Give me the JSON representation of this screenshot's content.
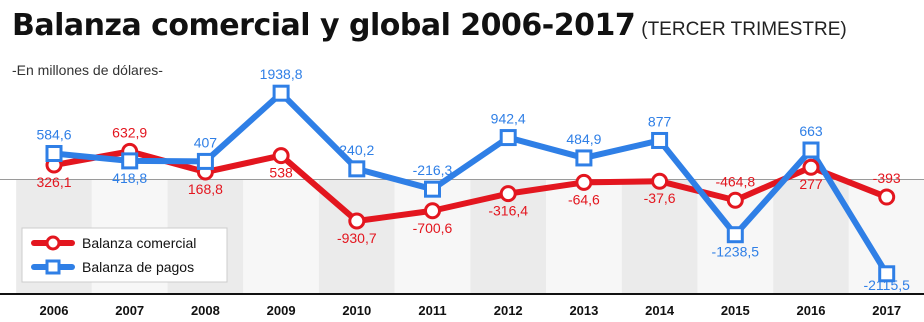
{
  "header": {
    "title": "Balanza comercial y global 2006-2017",
    "subtitle": "(TERCER TRIMESTRE)",
    "unit": "-En millones de dólares-"
  },
  "chart_data": {
    "type": "line",
    "title": "Balanza comercial y global 2006-2017",
    "subtitle": "(TERCER TRIMESTRE)",
    "ylabel": "-En millones de dólares-",
    "x": [
      "2006",
      "2007",
      "2008",
      "2009",
      "2010",
      "2011",
      "2012",
      "2013",
      "2014",
      "2015",
      "2016",
      "2017"
    ],
    "ylim": [
      -2300,
      2100
    ],
    "grid": false,
    "legend_position": "bottom-left",
    "series": [
      {
        "name": "Balanza comercial",
        "color": "#e3161f",
        "values": [
          326.1,
          632.9,
          168.8,
          538,
          -930.7,
          -700.6,
          -316.4,
          -64.6,
          -37.6,
          -464.8,
          277,
          -393
        ],
        "labels": [
          "326,1",
          "632,9",
          "168,8",
          "538",
          "-930,7",
          "-700,6",
          "-316,4",
          "-64,6",
          "-37,6",
          "-464,8",
          "277",
          "-393"
        ]
      },
      {
        "name": "Balanza de pagos",
        "color": "#2f7fe6",
        "values": [
          584.6,
          418.8,
          407,
          1938.8,
          240.2,
          -216.3,
          942.4,
          484.9,
          877,
          -1238.5,
          663,
          -2115.5
        ],
        "labels": [
          "584,6",
          "418,8",
          "407",
          "1938,8",
          "240,2",
          "-216,3",
          "942,4",
          "484,9",
          "877",
          "-1238,5",
          "663",
          "-2115,5"
        ]
      }
    ]
  }
}
